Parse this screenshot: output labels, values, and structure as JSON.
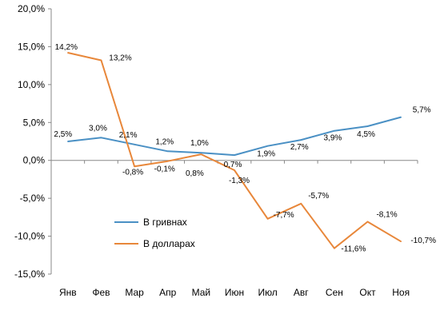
{
  "chart_data": {
    "type": "line",
    "categories": [
      "Янв",
      "Фев",
      "Мар",
      "Апр",
      "Май",
      "Июн",
      "Июл",
      "Авг",
      "Сен",
      "Окт",
      "Ноя"
    ],
    "ylim": [
      -15,
      20
    ],
    "yticks": [
      20,
      15,
      10,
      5,
      0,
      -5,
      -10,
      -15
    ],
    "yticklabels": [
      "20,0%",
      "15,0%",
      "10,0%",
      "5,0%",
      "0,0%",
      "-5,0%",
      "-10,0%",
      "-15,0%"
    ],
    "grid": false,
    "legend_position": "lower-left",
    "series": [
      {
        "name": "В гривнах",
        "color": "#4a90c4",
        "values": [
          2.5,
          3.0,
          2.1,
          1.2,
          1.0,
          0.7,
          1.9,
          2.7,
          3.9,
          4.5,
          5.7
        ],
        "labels": [
          "2,5%",
          "3,0%",
          "2,1%",
          "1,2%",
          "1,0%",
          "0,7%",
          "1,9%",
          "2,7%",
          "3,9%",
          "4,5%",
          "5,7%"
        ]
      },
      {
        "name": "В долларах",
        "color": "#e8873a",
        "values": [
          14.2,
          13.2,
          -0.8,
          -0.1,
          0.8,
          -1.3,
          -7.7,
          -5.7,
          -11.6,
          -8.1,
          -10.7
        ],
        "labels": [
          "14,2%",
          "13,2%",
          "-0,8%",
          "-0,1%",
          "0,8%",
          "-1,3%",
          "-7,7%",
          "-5,7%",
          "-11,6%",
          "-8,1%",
          "-10,7%"
        ]
      }
    ]
  }
}
